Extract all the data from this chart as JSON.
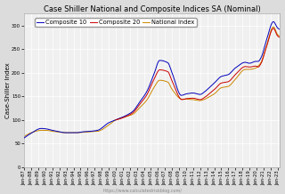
{
  "title": "Case Shiller National and Composite Indices SA (Nominal)",
  "ylabel": "Case-Shiller Index",
  "watermark": "https://www.calculatedriskblog.com/",
  "ylim": [
    0,
    325
  ],
  "yticks": [
    0,
    50,
    100,
    150,
    200,
    250,
    300
  ],
  "legend_entries": [
    "Composite 10",
    "Composite 20",
    "National Index"
  ],
  "colors": {
    "composite10": "#0000bb",
    "composite20": "#cc0000",
    "national": "#cc8800"
  },
  "background_color": "#dcdcdc",
  "plot_background": "#f0f0f0",
  "grid_color": "#ffffff",
  "title_fontsize": 6.0,
  "axis_fontsize": 5.0,
  "tick_fontsize": 3.8,
  "legend_fontsize": 4.8,
  "watermark_fontsize": 3.5,
  "linewidth": 0.7
}
